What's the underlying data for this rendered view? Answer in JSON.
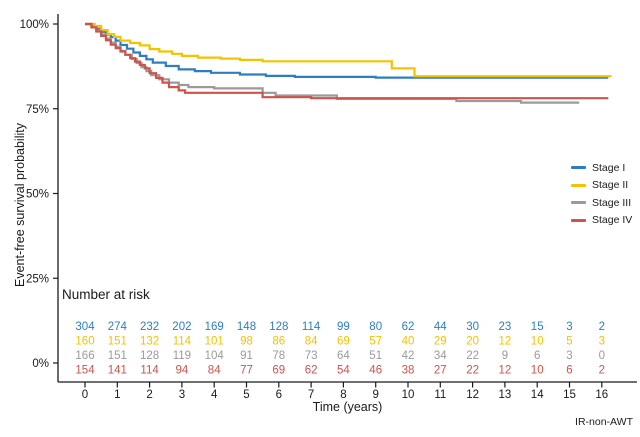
{
  "chart_data": {
    "type": "line",
    "subtype": "kaplan-meier-step",
    "title": "",
    "xlabel": "Time (years)",
    "ylabel": "Event-free survival probability",
    "footnote": "IR-non-AWT",
    "risk_table_title": "Number at risk",
    "grid": false,
    "legend_position": "right-middle",
    "xlim": [
      -0.85,
      17.1
    ],
    "ylim": [
      0,
      100
    ],
    "x_ticks": [
      0,
      1,
      2,
      3,
      4,
      5,
      6,
      7,
      8,
      9,
      10,
      11,
      12,
      13,
      14,
      15,
      16
    ],
    "y_ticks": [
      {
        "v": 0,
        "label": "0%"
      },
      {
        "v": 25,
        "label": "25%"
      },
      {
        "v": 50,
        "label": "50%"
      },
      {
        "v": 75,
        "label": "75%"
      },
      {
        "v": 100,
        "label": "100%"
      }
    ],
    "axis_color": "#1a1a1a",
    "series": [
      {
        "name": "Stage I",
        "color": "#2e7ebd",
        "steps": [
          [
            0,
            100
          ],
          [
            0.2,
            99.3
          ],
          [
            0.35,
            98.6
          ],
          [
            0.5,
            97.7
          ],
          [
            0.65,
            96.9
          ],
          [
            0.8,
            96.1
          ],
          [
            0.95,
            95.1
          ],
          [
            1.1,
            93.8
          ],
          [
            1.3,
            92.7
          ],
          [
            1.5,
            91.6
          ],
          [
            1.7,
            90.6
          ],
          [
            1.9,
            89.6
          ],
          [
            2.1,
            88.6
          ],
          [
            2.5,
            87.6
          ],
          [
            2.9,
            86.6
          ],
          [
            3.4,
            86.1
          ],
          [
            3.9,
            85.6
          ],
          [
            4.8,
            85.1
          ],
          [
            5.6,
            84.7
          ],
          [
            6.5,
            84.4
          ],
          [
            9,
            84.2
          ],
          [
            16.2,
            84.2
          ]
        ],
        "at_risk": [
          304,
          274,
          232,
          202,
          169,
          148,
          128,
          114,
          99,
          80,
          62,
          44,
          30,
          23,
          15,
          3,
          2
        ]
      },
      {
        "name": "Stage II",
        "color": "#f3c300",
        "steps": [
          [
            0,
            100
          ],
          [
            0.3,
            99.4
          ],
          [
            0.5,
            98.2
          ],
          [
            0.7,
            97
          ],
          [
            0.9,
            96.2
          ],
          [
            1.1,
            95.1
          ],
          [
            1.4,
            94.4
          ],
          [
            1.7,
            93.7
          ],
          [
            2,
            92.6
          ],
          [
            2.3,
            91.9
          ],
          [
            2.7,
            91.2
          ],
          [
            3,
            90.6
          ],
          [
            3.5,
            90.1
          ],
          [
            4.2,
            89.8
          ],
          [
            4.8,
            89.4
          ],
          [
            5.5,
            89
          ],
          [
            9.5,
            86.9
          ],
          [
            10.2,
            84.6
          ],
          [
            16.3,
            84.6
          ]
        ],
        "at_risk": [
          160,
          151,
          132,
          114,
          101,
          98,
          86,
          84,
          69,
          57,
          40,
          29,
          20,
          12,
          10,
          5,
          3
        ]
      },
      {
        "name": "Stage III",
        "color": "#9a9a9a",
        "steps": [
          [
            0,
            100
          ],
          [
            0.2,
            99.1
          ],
          [
            0.35,
            98
          ],
          [
            0.5,
            96.9
          ],
          [
            0.65,
            95.7
          ],
          [
            0.8,
            94.5
          ],
          [
            0.95,
            93.3
          ],
          [
            1.1,
            92.1
          ],
          [
            1.25,
            90.9
          ],
          [
            1.45,
            89.7
          ],
          [
            1.6,
            88.5
          ],
          [
            1.75,
            87.3
          ],
          [
            1.9,
            86.1
          ],
          [
            2.05,
            84.9
          ],
          [
            2.3,
            83.7
          ],
          [
            2.6,
            82.7
          ],
          [
            2.9,
            82
          ],
          [
            3.2,
            81.4
          ],
          [
            4,
            81
          ],
          [
            5.5,
            79.7
          ],
          [
            5.9,
            78.9
          ],
          [
            7.8,
            77.9
          ],
          [
            11.5,
            77.3
          ],
          [
            13.5,
            76.8
          ],
          [
            15.3,
            76.8
          ]
        ],
        "at_risk": [
          166,
          151,
          128,
          119,
          104,
          91,
          78,
          73,
          64,
          51,
          42,
          34,
          22,
          9,
          6,
          3,
          0
        ]
      },
      {
        "name": "Stage IV",
        "color": "#cd534c",
        "steps": [
          [
            0,
            100
          ],
          [
            0.2,
            99
          ],
          [
            0.35,
            97.8
          ],
          [
            0.5,
            96.5
          ],
          [
            0.65,
            95.2
          ],
          [
            0.8,
            93.9
          ],
          [
            0.95,
            92.9
          ],
          [
            1.1,
            91.9
          ],
          [
            1.25,
            90.9
          ],
          [
            1.4,
            89.9
          ],
          [
            1.55,
            88.9
          ],
          [
            1.7,
            87.9
          ],
          [
            1.85,
            86.9
          ],
          [
            2,
            85.5
          ],
          [
            2.2,
            84.1
          ],
          [
            2.4,
            82.7
          ],
          [
            2.6,
            81.4
          ],
          [
            2.9,
            80.4
          ],
          [
            3.1,
            79.7
          ],
          [
            5.5,
            78.4
          ],
          [
            7,
            78.1
          ],
          [
            16.2,
            78.1
          ]
        ],
        "at_risk": [
          154,
          141,
          114,
          94,
          84,
          77,
          69,
          62,
          54,
          46,
          38,
          27,
          22,
          12,
          10,
          6,
          2
        ]
      }
    ]
  }
}
